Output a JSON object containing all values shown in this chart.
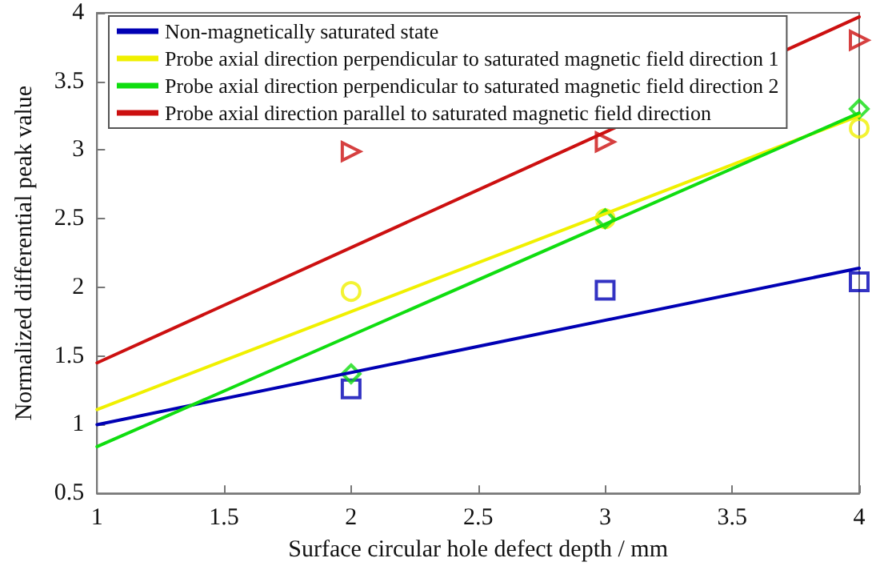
{
  "chart_data": {
    "type": "line",
    "xlabel": "Surface circular hole defect depth / mm",
    "ylabel": "Normalized differential peak value",
    "xlim": [
      1,
      4
    ],
    "xticks": [
      1,
      1.5,
      2,
      2.5,
      3,
      3.5,
      4
    ],
    "ylim": [
      0.5,
      4
    ],
    "yticks": [
      0.5,
      1,
      1.5,
      2,
      2.5,
      3,
      3.5,
      4
    ],
    "legend": "top",
    "grid": false,
    "series": [
      {
        "name": "Non-magnetically saturated state",
        "color": "#0000b4",
        "marker": "none",
        "x": [
          1,
          4
        ],
        "values": [
          1.0,
          2.14
        ]
      },
      {
        "name": "Probe axial direction perpendicular to saturated magnetic field direction 1",
        "color": "#f0f000",
        "marker": "none",
        "x": [
          1,
          4
        ],
        "values": [
          1.11,
          3.25
        ]
      },
      {
        "name": "Probe axial direction perpendicular to saturated magnetic field direction 2",
        "color": "#10dd10",
        "marker": "none",
        "x": [
          1,
          4
        ],
        "values": [
          0.84,
          3.27
        ]
      },
      {
        "name": "Probe axial direction parallel to saturated magnetic field direction",
        "color": "#cc1010",
        "marker": "none",
        "x": [
          1,
          4
        ],
        "values": [
          1.45,
          3.97
        ]
      },
      {
        "color": "#0000b4",
        "type": "scatter",
        "marker": "square",
        "x": [
          2,
          3,
          4
        ],
        "values": [
          1.26,
          1.98,
          2.04
        ]
      },
      {
        "color": "#f0f000",
        "type": "scatter",
        "marker": "circle",
        "x": [
          2,
          3,
          4
        ],
        "values": [
          1.97,
          2.5,
          3.16
        ]
      },
      {
        "color": "#10dd10",
        "type": "scatter",
        "marker": "diamond",
        "x": [
          2,
          3,
          4
        ],
        "values": [
          1.37,
          2.5,
          3.3
        ]
      },
      {
        "color": "#cc1010",
        "type": "scatter",
        "marker": "triangle",
        "x": [
          2,
          3,
          4
        ],
        "values": [
          2.99,
          3.06,
          3.8
        ]
      }
    ]
  }
}
